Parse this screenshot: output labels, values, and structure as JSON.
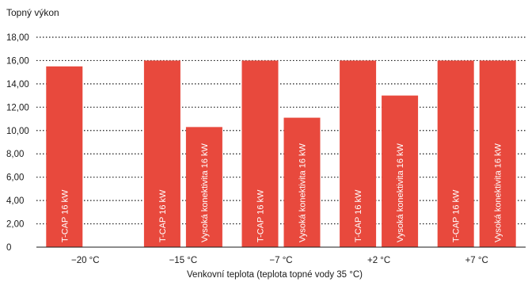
{
  "chart_data": {
    "type": "bar",
    "title": "",
    "ylabel": "Topný výkon",
    "xlabel": "Venkovní teplota (teplota topné vody 35 °C)",
    "categories": [
      "−20 °C",
      "−15 °C",
      "−7 °C",
      "+2 °C",
      "+7 °C"
    ],
    "y_ticks": [
      "0",
      "2,00",
      "4,00",
      "6,00",
      "8,00",
      "10,00",
      "12,00",
      "14,00",
      "16,00",
      "18,00"
    ],
    "ylim": [
      0,
      18
    ],
    "grid": true,
    "grid_style": "dotted",
    "series": [
      {
        "name": "T-CAP 16 kW",
        "values": [
          15.5,
          16,
          16,
          16,
          16
        ]
      },
      {
        "name": "Vysoká konektivita 16 kW",
        "values": [
          null,
          10.3,
          11.1,
          13.0,
          16
        ]
      }
    ],
    "bar_color": "#e8493d",
    "bar_label_color": "#ffffff"
  }
}
